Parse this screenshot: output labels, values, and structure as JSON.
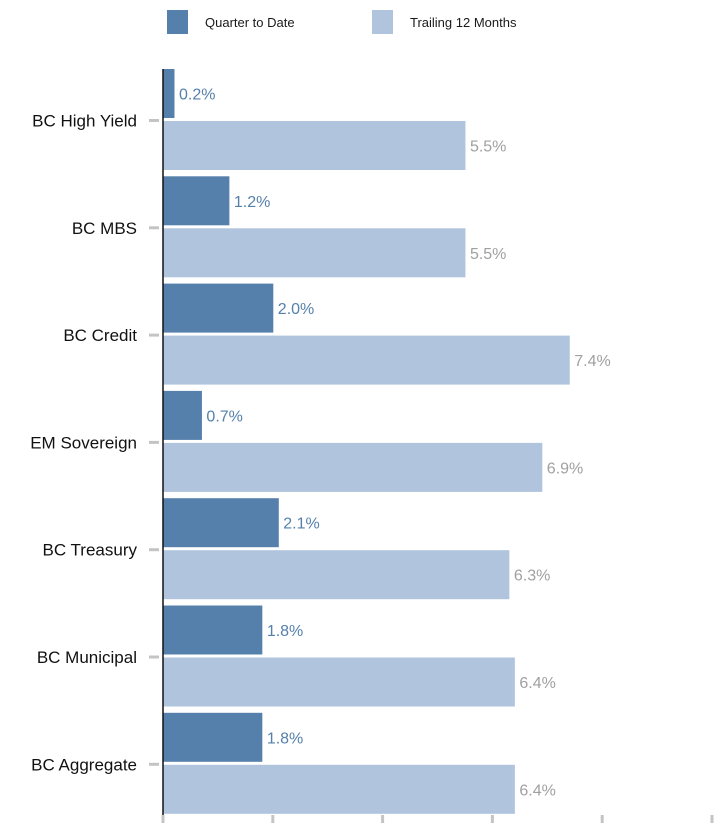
{
  "chart_data": {
    "type": "bar",
    "orientation": "horizontal",
    "title": "",
    "xlabel": "",
    "ylabel": "",
    "categories": [
      "BC High Yield",
      "BC MBS",
      "BC Credit",
      "EM Sovereign",
      "BC Treasury",
      "BC Municipal",
      "BC Aggregate"
    ],
    "series": [
      {
        "name": "Quarter to Date",
        "color": "#5580ab",
        "label_color": "#5580ab",
        "values": [
          0.2,
          1.2,
          2.0,
          0.7,
          2.1,
          1.8,
          1.8
        ],
        "labels": [
          "0.2%",
          "1.2%",
          "2.0%",
          "0.7%",
          "2.1%",
          "1.8%",
          "1.8%"
        ]
      },
      {
        "name": "Trailing 12 Months",
        "color": "#b0c4dd",
        "label_color": "#a0a0a0",
        "values": [
          5.5,
          5.5,
          7.4,
          6.9,
          6.3,
          6.4,
          6.4
        ],
        "labels": [
          "5.5%",
          "5.5%",
          "7.4%",
          "6.9%",
          "6.3%",
          "6.4%",
          "6.4%"
        ]
      }
    ],
    "xlim": [
      0,
      10
    ],
    "x_tick_values": [
      0,
      2,
      4,
      6,
      8,
      10
    ],
    "grid": false,
    "legend_position": "top"
  }
}
